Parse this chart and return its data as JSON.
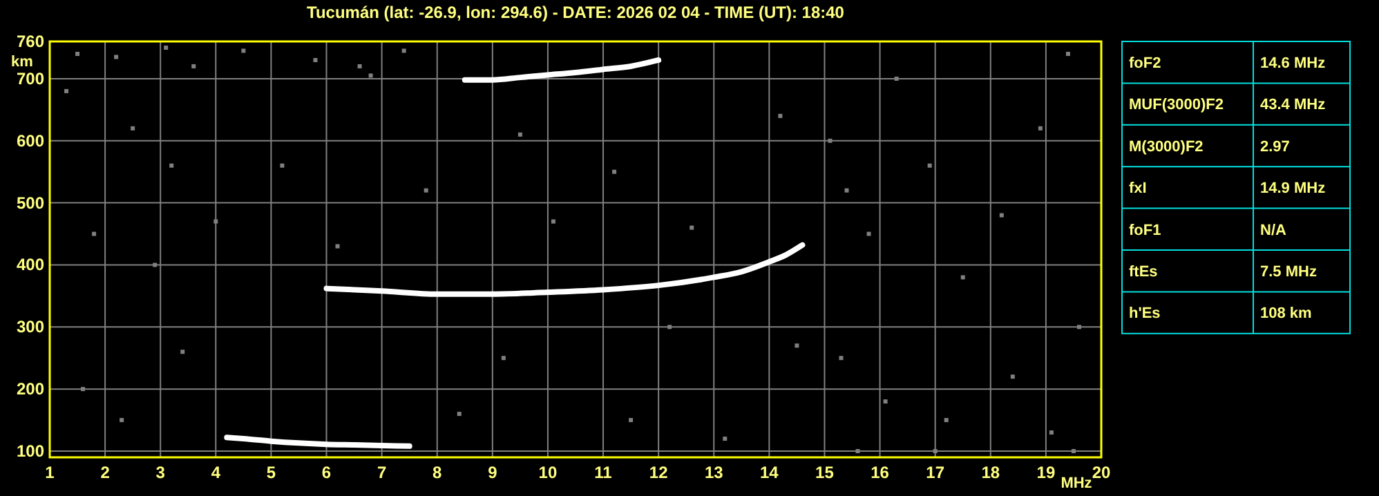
{
  "chart_data": [
    {
      "type": "scatter",
      "title": "Tucumán (lat: -26.9, lon: 294.6) - DATE: 2026 02 04 - TIME (UT): 18:40",
      "xlabel": "MHz",
      "ylabel": "km",
      "xlim": [
        1,
        20
      ],
      "xticks": [
        1,
        2,
        3,
        4,
        5,
        6,
        7,
        8,
        9,
        10,
        11,
        12,
        13,
        14,
        15,
        16,
        17,
        18,
        19,
        20
      ],
      "ylim": [
        90,
        760
      ],
      "yticks": [
        100,
        200,
        300,
        400,
        500,
        600,
        700,
        760
      ],
      "grid": true,
      "series": [
        {
          "type": "line",
          "color": "#ffffff",
          "line_style": "solid",
          "x": [
            6.0,
            7.0,
            8.0,
            9.0,
            10.0,
            11.0,
            12.0,
            13.0,
            13.5,
            14.0,
            14.3,
            14.6
          ],
          "values": [
            362,
            358,
            353,
            353,
            356,
            360,
            367,
            380,
            389,
            405,
            416,
            432
          ]
        },
        {
          "type": "line",
          "color": "#ffffff",
          "line_style": "solid",
          "x": [
            8.5,
            9.0,
            9.5,
            10.0,
            10.5,
            11.0,
            11.5,
            12.0
          ],
          "values": [
            698,
            698,
            702,
            706,
            710,
            715,
            720,
            730
          ]
        },
        {
          "type": "line",
          "color": "#ffffff",
          "line_style": "solid",
          "x": [
            4.2,
            4.5,
            5.0,
            5.5,
            6.0,
            6.5,
            7.0,
            7.5
          ],
          "values": [
            122,
            120,
            116,
            113,
            111,
            110,
            109,
            108
          ]
        },
        {
          "type": "scatter",
          "color": "#808080",
          "marker": "square",
          "x": [
            1.5,
            2.2,
            3.1,
            3.6,
            4.5,
            5.8,
            6.6,
            6.8,
            7.4,
            1.3,
            2.5,
            3.2,
            1.8,
            2.9,
            4.0,
            5.2,
            6.2,
            7.8,
            9.5,
            11.2,
            12.6,
            14.2,
            15.1,
            15.4,
            15.8,
            16.3,
            16.9,
            17.5,
            18.2,
            18.9,
            19.4,
            19.6,
            15.3,
            16.1,
            17.2,
            18.4,
            19.1,
            1.6,
            2.3,
            3.4,
            9.2,
            11.5,
            13.2,
            15.6,
            17.0,
            19.5,
            14.5,
            12.2,
            10.1,
            8.4
          ],
          "values": [
            740,
            735,
            750,
            720,
            745,
            730,
            720,
            705,
            745,
            680,
            620,
            560,
            450,
            400,
            470,
            560,
            430,
            520,
            610,
            550,
            460,
            640,
            600,
            520,
            450,
            700,
            560,
            380,
            480,
            620,
            740,
            300,
            250,
            180,
            150,
            220,
            130,
            200,
            150,
            260,
            250,
            150,
            120,
            100,
            100,
            100,
            270,
            300,
            470,
            160
          ]
        }
      ]
    },
    {
      "type": "other",
      "categories": [
        "foF2",
        "MUF(3000)F2",
        "M(3000)F2",
        "fxI",
        "foF1",
        "ftEs",
        "h'Es"
      ],
      "value_labels": [
        "14.6 MHz",
        "43.4 MHz",
        "2.97",
        "14.9 MHz",
        "N/A",
        "7.5 MHz",
        "108 km"
      ]
    }
  ]
}
